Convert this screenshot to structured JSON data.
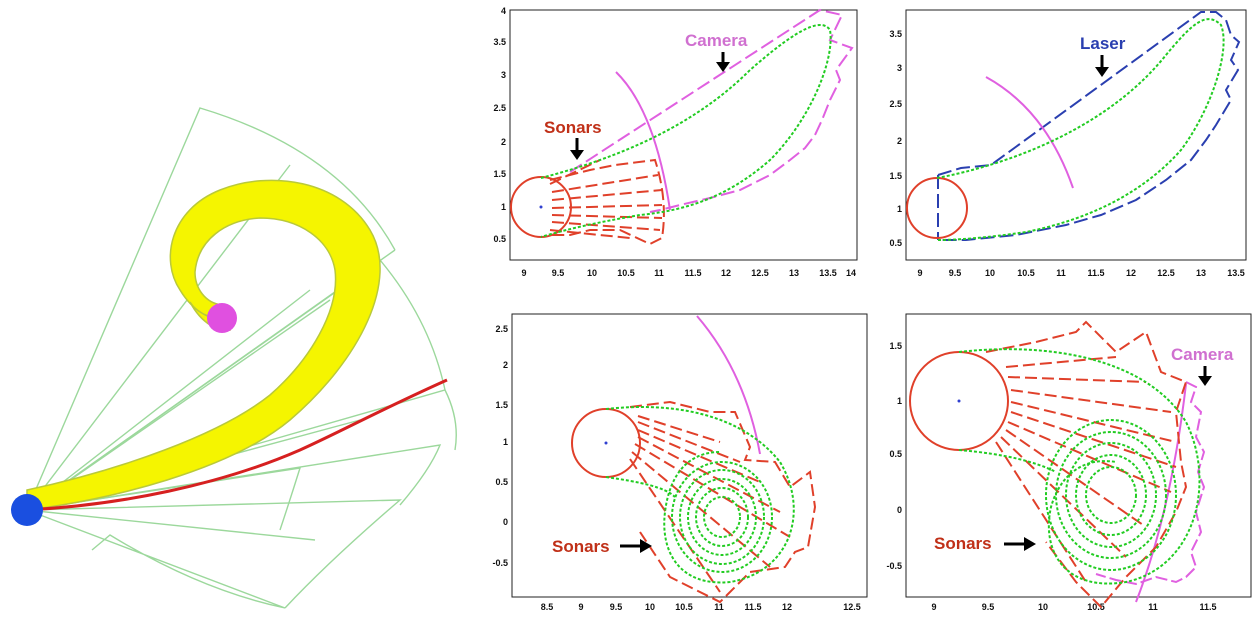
{
  "colors": {
    "sonar": "#e0402a",
    "camera": "#e060e0",
    "laser": "#2a3fb0",
    "envelope": "#22cc22",
    "spiral_fill": "#f5f500",
    "spiral_edge": "#b9c93a",
    "fov_lines": "#9cd89c",
    "path": "#d62020",
    "start_dot": "#1a4fe0",
    "goal_dot": "#e050e0",
    "robot_center": "#3040d0"
  },
  "illustration": {
    "start_marker": "blue-disc",
    "goal_marker": "magenta-disc"
  },
  "panels": [
    {
      "id": "top-middle",
      "x_ticks": [
        "9",
        "9.5",
        "10",
        "10.5",
        "11",
        "11.5",
        "12",
        "12.5",
        "13",
        "13.5",
        "14"
      ],
      "y_ticks": [
        "0.5",
        "1",
        "1.5",
        "2",
        "2.5",
        "3",
        "3.5",
        "4"
      ],
      "callouts": [
        {
          "text": "Sonars",
          "color": "sonar"
        },
        {
          "text": "Camera",
          "color": "camera"
        }
      ]
    },
    {
      "id": "top-right",
      "x_ticks": [
        "9",
        "9.5",
        "10",
        "10.5",
        "11",
        "11.5",
        "12",
        "12.5",
        "13",
        "13.5"
      ],
      "y_ticks": [
        "0.5",
        "1",
        "1.5",
        "2",
        "2.5",
        "3",
        "3.5"
      ],
      "callouts": [
        {
          "text": "Laser",
          "color": "laser"
        }
      ]
    },
    {
      "id": "bottom-middle",
      "x_ticks": [
        "8.5",
        "9",
        "9.5",
        "10",
        "10.5",
        "11",
        "11.5",
        "12",
        "12.5"
      ],
      "y_ticks": [
        "-0.5",
        "0",
        "0.5",
        "1",
        "1.5",
        "2",
        "2.5"
      ],
      "callouts": [
        {
          "text": "Sonars",
          "color": "sonar"
        }
      ]
    },
    {
      "id": "bottom-right",
      "x_ticks": [
        "9",
        "9.5",
        "10",
        "10.5",
        "11",
        "11.5"
      ],
      "y_ticks": [
        "-0.5",
        "0",
        "0.5",
        "1",
        "1.5"
      ],
      "callouts": [
        {
          "text": "Sonars",
          "color": "sonar"
        },
        {
          "text": "Camera",
          "color": "camera"
        }
      ]
    }
  ]
}
